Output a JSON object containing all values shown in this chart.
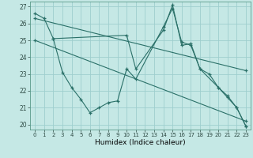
{
  "xlabel": "Humidex (Indice chaleur)",
  "background_color": "#c5e8e5",
  "grid_color": "#9ecece",
  "line_color": "#2a7068",
  "xlim": [
    -0.5,
    23.5
  ],
  "ylim": [
    19.7,
    27.3
  ],
  "xticks": [
    0,
    1,
    2,
    3,
    4,
    5,
    6,
    7,
    8,
    9,
    10,
    11,
    12,
    13,
    14,
    15,
    16,
    17,
    18,
    19,
    20,
    21,
    22,
    23
  ],
  "yticks": [
    20,
    21,
    22,
    23,
    24,
    25,
    26,
    27
  ],
  "series": [
    {
      "x": [
        0,
        1,
        2,
        10,
        11,
        14,
        15,
        16,
        17,
        18,
        20,
        21,
        22,
        23
      ],
      "y": [
        26.6,
        26.3,
        25.1,
        25.3,
        23.3,
        25.6,
        27.1,
        24.7,
        24.8,
        23.3,
        22.2,
        21.7,
        21.0,
        19.9
      ]
    },
    {
      "x": [
        2,
        3,
        4,
        5,
        6,
        7,
        8,
        9,
        10,
        11,
        14,
        15,
        16,
        17,
        18,
        19,
        20,
        21,
        22,
        23
      ],
      "y": [
        25.1,
        23.1,
        22.2,
        21.5,
        20.7,
        21.0,
        21.3,
        21.4,
        23.3,
        22.7,
        25.8,
        26.9,
        24.9,
        24.7,
        23.3,
        23.0,
        22.2,
        21.6,
        21.0,
        19.9
      ]
    },
    {
      "x": [
        0,
        23
      ],
      "y": [
        26.3,
        23.2
      ]
    },
    {
      "x": [
        0,
        23
      ],
      "y": [
        25.0,
        20.2
      ]
    }
  ]
}
